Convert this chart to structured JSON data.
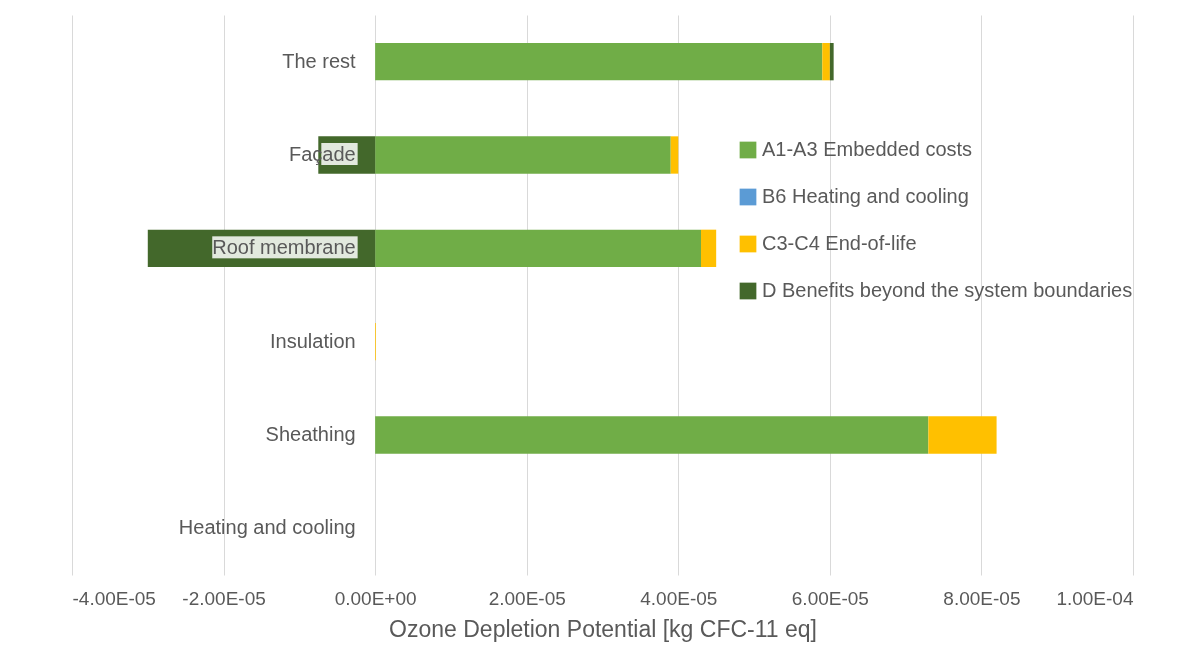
{
  "chart_data": {
    "type": "bar",
    "orientation": "horizontal",
    "stacked": true,
    "xlabel": "Ozone Depletion Potential [kg CFC-11 eq]",
    "categories": [
      "The rest",
      "Façade",
      "Roof membrane",
      "Insulation",
      "Sheathing",
      "Heating and cooling"
    ],
    "series": [
      {
        "name": "A1-A3 Embedded costs",
        "color": "#70ad47",
        "values": [
          5.9e-05,
          3.9e-05,
          4.3e-05,
          0,
          7.3e-05,
          0
        ]
      },
      {
        "name": "B6 Heating and cooling",
        "color": "#5b9bd5",
        "values": [
          0,
          0,
          0,
          0,
          0,
          0
        ]
      },
      {
        "name": "C3-C4 End-of-life",
        "color": "#ffc000",
        "values": [
          1e-06,
          1e-06,
          2e-06,
          1e-07,
          9e-06,
          0
        ]
      },
      {
        "name": "D Benefits beyond the system boundaries",
        "color": "#43682b",
        "values": [
          5e-07,
          -7.5e-06,
          -3e-05,
          0,
          0,
          0
        ]
      }
    ],
    "xlim": [
      -4e-05,
      0.0001
    ],
    "xticks": [
      {
        "value": -4e-05,
        "label": "-4.00E-05"
      },
      {
        "value": -2e-05,
        "label": "-2.00E-05"
      },
      {
        "value": 0,
        "label": "0.00E+00"
      },
      {
        "value": 2e-05,
        "label": "2.00E-05"
      },
      {
        "value": 4e-05,
        "label": "4.00E-05"
      },
      {
        "value": 6e-05,
        "label": "6.00E-05"
      },
      {
        "value": 8e-05,
        "label": "8.00E-05"
      },
      {
        "value": 0.0001,
        "label": "1.00E-04"
      }
    ],
    "grid": "x",
    "legend": "right"
  }
}
